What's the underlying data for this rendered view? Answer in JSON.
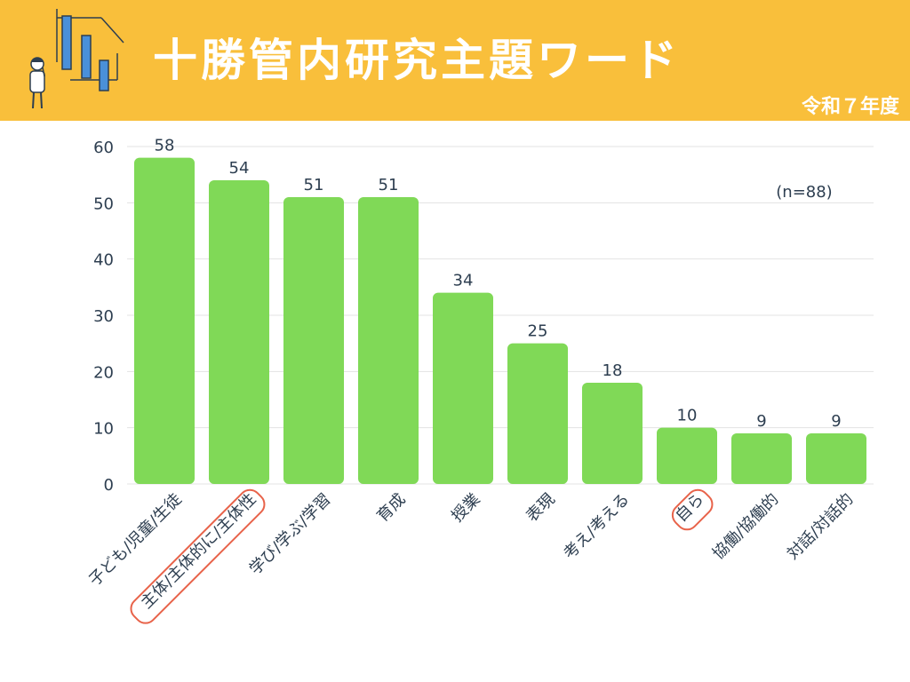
{
  "header": {
    "title": "十勝管内研究主題ワード",
    "subtitle": "令和７年度",
    "illustration_icon": "person-analyzing-bar-chart-icon"
  },
  "colors": {
    "header_bg": "#f9bf3b",
    "bar": "#80d957",
    "highlight_outline": "#e8634a",
    "text": "#2d3e50",
    "grid": "#e3e3e3"
  },
  "chart_data": {
    "type": "bar",
    "title": "",
    "xlabel": "",
    "ylabel": "",
    "categories": [
      "子ども/児童/生徒",
      "主体/主体的に/主体性",
      "学び/学ぶ/学習",
      "育成",
      "授業",
      "表現",
      "考え/考える",
      "自ら",
      "協働/協働的",
      "対話/対話的"
    ],
    "values": [
      58,
      54,
      51,
      51,
      34,
      25,
      18,
      10,
      9,
      9
    ],
    "highlighted": [
      "主体/主体的に/主体性",
      "自ら"
    ],
    "ylim": [
      0,
      60
    ],
    "yticks": [
      0,
      10,
      20,
      30,
      40,
      50,
      60
    ],
    "grid": true,
    "annotation": "(n=88)",
    "data_labels": true
  }
}
